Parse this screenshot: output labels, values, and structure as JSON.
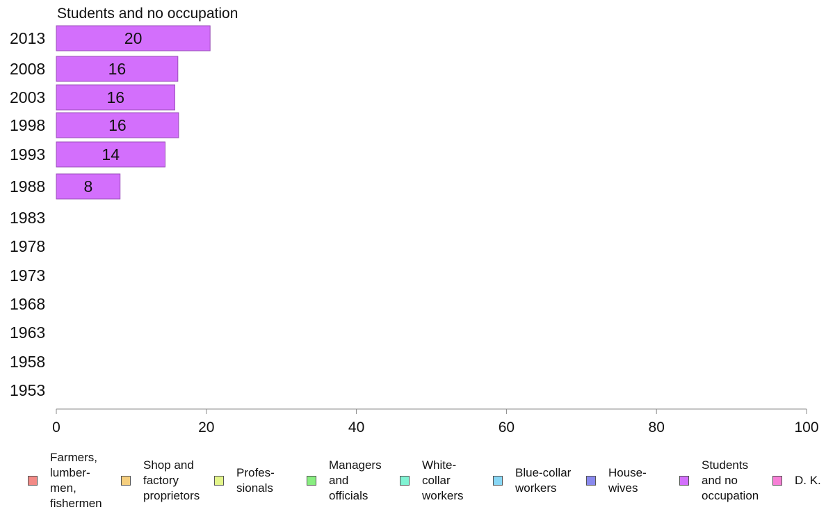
{
  "chart_data": {
    "type": "bar",
    "orientation": "horizontal",
    "title": "Students and no occupation",
    "categories": [
      "2013",
      "2008",
      "2003",
      "1998",
      "1993",
      "1988",
      "1983",
      "1978",
      "1973",
      "1968",
      "1963",
      "1958",
      "1953"
    ],
    "series": [
      {
        "name": "Students and no occupation",
        "values": [
          20.5,
          16.2,
          15.8,
          16.3,
          14.5,
          8.5,
          null,
          null,
          null,
          null,
          null,
          null,
          null
        ],
        "labels": [
          "20",
          "16",
          "16",
          "16",
          "14",
          "8",
          "",
          "",
          "",
          "",
          "",
          "",
          ""
        ]
      }
    ],
    "xlim": [
      0,
      100
    ],
    "x_ticks": [
      0,
      20,
      40,
      60,
      80,
      100
    ],
    "bar_color": "#d36ffc",
    "grid": false
  },
  "legend": {
    "items": [
      {
        "label": "Farmers,\nlumber-\nmen,\nfishermen",
        "color": "#f38a86"
      },
      {
        "label": "Shop and\nfactory\nproprietors",
        "color": "#f6cf7e"
      },
      {
        "label": "Profes-\nsionals",
        "color": "#e3f58a"
      },
      {
        "label": "Managers\nand\nofficials",
        "color": "#88ee80"
      },
      {
        "label": "White-\ncollar\nworkers",
        "color": "#80f3d3"
      },
      {
        "label": "Blue-collar\nworkers",
        "color": "#88d7f5"
      },
      {
        "label": "House-\nwives",
        "color": "#8989ee"
      },
      {
        "label": "Students\nand no\noccupation",
        "color": "#d36ffc"
      },
      {
        "label": "D. K.",
        "color": "#f77fd6"
      }
    ]
  }
}
